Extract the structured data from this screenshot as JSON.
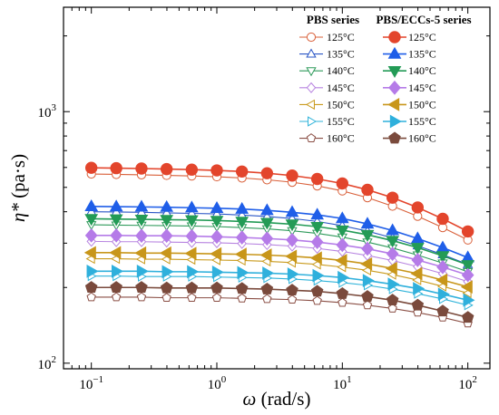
{
  "chart_data": {
    "type": "line",
    "x_scale": "log",
    "y_scale": "log",
    "xlim": [
      0.06,
      150
    ],
    "ylim": [
      95,
      2600
    ],
    "x_ticks": [
      0.1,
      1,
      10,
      100
    ],
    "x_tick_labels": [
      {
        "base": "10",
        "exp": "−1"
      },
      {
        "base": "10",
        "exp": "0"
      },
      {
        "base": "10",
        "exp": "1"
      },
      {
        "base": "10",
        "exp": "2"
      }
    ],
    "y_ticks": [
      100,
      1000
    ],
    "y_tick_labels": [
      {
        "base": "10",
        "exp": "2"
      },
      {
        "base": "10",
        "exp": "3"
      }
    ],
    "xlabel": {
      "symbol": "ω",
      "unit": " (rad/s)"
    },
    "ylabel": {
      "symbol": "η*",
      "unit": " (pa·s)"
    },
    "legend_placement": "top-right",
    "legend_groups": [
      {
        "title": "PBS series",
        "style": "hollow"
      },
      {
        "title": "PBS/ECCs-5 series",
        "style": "filled"
      }
    ],
    "x": [
      0.1,
      0.158,
      0.251,
      0.398,
      0.631,
      1.0,
      1.585,
      2.512,
      3.981,
      6.31,
      10.0,
      15.85,
      25.12,
      39.81,
      63.1,
      100.0
    ],
    "series": [
      {
        "name": "125°C",
        "group": 0,
        "marker": "circle",
        "color": "#d9603a",
        "values": [
          565,
          563,
          561,
          558,
          555,
          551,
          545,
          536,
          524,
          507,
          484,
          455,
          421,
          384,
          346,
          309
        ]
      },
      {
        "name": "135°C",
        "group": 0,
        "marker": "triangle-up",
        "color": "#2a56c6",
        "values": [
          400,
          399,
          398,
          396,
          394,
          392,
          388,
          383,
          376,
          366,
          352,
          335,
          315,
          293,
          270,
          247
        ]
      },
      {
        "name": "140°C",
        "group": 0,
        "marker": "triangle-down",
        "color": "#2e9a5a",
        "values": [
          355,
          354,
          353,
          352,
          351,
          349,
          346,
          342,
          336,
          328,
          317,
          303,
          287,
          269,
          250,
          231
        ]
      },
      {
        "name": "145°C",
        "group": 0,
        "marker": "diamond",
        "color": "#b783e0",
        "values": [
          305,
          304,
          304,
          303,
          302,
          301,
          299,
          296,
          292,
          286,
          278,
          268,
          256,
          242,
          227,
          211
        ]
      },
      {
        "name": "150°C",
        "group": 0,
        "marker": "triangle-left",
        "color": "#c99a1c",
        "values": [
          260,
          260,
          259,
          259,
          258,
          257,
          256,
          254,
          251,
          247,
          241,
          234,
          225,
          214,
          202,
          190
        ]
      },
      {
        "name": "155°C",
        "group": 0,
        "marker": "triangle-right",
        "color": "#2fb3d9",
        "values": [
          222,
          222,
          221,
          221,
          221,
          220,
          219,
          218,
          216,
          213,
          209,
          204,
          197,
          189,
          180,
          170
        ]
      },
      {
        "name": "160°C",
        "group": 0,
        "marker": "pentagon",
        "color": "#8a4e44",
        "values": [
          183,
          183,
          183,
          182,
          182,
          182,
          181,
          180,
          179,
          177,
          174,
          170,
          165,
          159,
          152,
          144
        ]
      },
      {
        "name": "125°C",
        "group": 1,
        "marker": "circle",
        "color": "#e3452c",
        "values": [
          598,
          596,
          594,
          591,
          588,
          584,
          578,
          569,
          557,
          540,
          518,
          489,
          455,
          416,
          375,
          334
        ]
      },
      {
        "name": "135°C",
        "group": 1,
        "marker": "triangle-up",
        "color": "#1f5ee8",
        "values": [
          420,
          419,
          418,
          417,
          415,
          413,
          410,
          405,
          398,
          389,
          376,
          358,
          337,
          313,
          288,
          263
        ]
      },
      {
        "name": "140°C",
        "group": 1,
        "marker": "triangle-down",
        "color": "#239b56",
        "values": [
          375,
          374,
          373,
          372,
          371,
          369,
          366,
          362,
          357,
          349,
          338,
          324,
          307,
          288,
          267,
          246
        ]
      },
      {
        "name": "145°C",
        "group": 1,
        "marker": "diamond",
        "color": "#b57be8",
        "values": [
          322,
          322,
          321,
          321,
          320,
          318,
          316,
          313,
          309,
          303,
          295,
          285,
          272,
          257,
          241,
          224
        ]
      },
      {
        "name": "150°C",
        "group": 1,
        "marker": "triangle-left",
        "color": "#c8961a",
        "values": [
          275,
          275,
          274,
          274,
          273,
          272,
          271,
          269,
          266,
          262,
          256,
          248,
          238,
          227,
          214,
          201
        ]
      },
      {
        "name": "155°C",
        "group": 1,
        "marker": "triangle-right",
        "color": "#2fb0dc",
        "values": [
          232,
          232,
          232,
          231,
          231,
          230,
          229,
          228,
          226,
          223,
          219,
          213,
          206,
          198,
          188,
          178
        ]
      },
      {
        "name": "160°C",
        "group": 1,
        "marker": "pentagon",
        "color": "#7a4a3c",
        "values": [
          200,
          200,
          200,
          199,
          199,
          199,
          198,
          197,
          195,
          193,
          189,
          184,
          178,
          170,
          161,
          152
        ]
      }
    ]
  }
}
